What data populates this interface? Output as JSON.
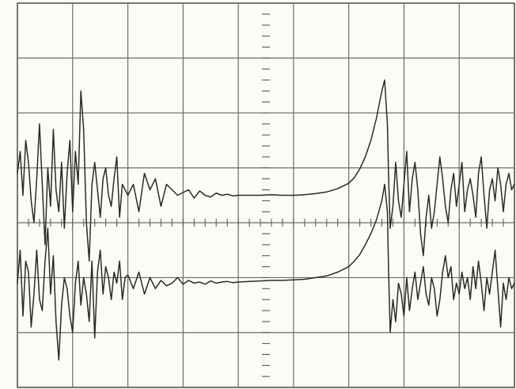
{
  "chart_data": {
    "type": "line",
    "title": "",
    "xlabel": "",
    "ylabel": "",
    "grid": true,
    "xlim": [
      0,
      9
    ],
    "ylim": [
      -3.5,
      3.5
    ],
    "x_divisions": 9,
    "y_divisions": 7,
    "colors": {
      "trace": "#2b2b28",
      "grid": "#6c6c66",
      "background": "#fbfbf8"
    },
    "series": [
      {
        "x": [
          0.0,
          0.05,
          0.1,
          0.15,
          0.2,
          0.25,
          0.3,
          0.35,
          0.4,
          0.45,
          0.5,
          0.55,
          0.6,
          0.65,
          0.7,
          0.75,
          0.8,
          0.85,
          0.9,
          0.95,
          1.0,
          1.05,
          1.1,
          1.15,
          1.2,
          1.25,
          1.3,
          1.35,
          1.4,
          1.45,
          1.5,
          1.55,
          1.6,
          1.65,
          1.7,
          1.75,
          1.8,
          1.85,
          1.9,
          1.95,
          2.0,
          2.1,
          2.2,
          2.3,
          2.4,
          2.5,
          2.6,
          2.7,
          2.8,
          2.9,
          3.0,
          3.1,
          3.2,
          3.3,
          3.4,
          3.5,
          3.6,
          3.7,
          3.8,
          3.9,
          4.0,
          4.2,
          4.4,
          4.6,
          4.8,
          5.0,
          5.2,
          5.4,
          5.6,
          5.8,
          6.0,
          6.1,
          6.2,
          6.3,
          6.4,
          6.5,
          6.6,
          6.65,
          6.7,
          6.72,
          6.75,
          6.8,
          6.85,
          6.9,
          6.95,
          7.0,
          7.05,
          7.1,
          7.15,
          7.2,
          7.25,
          7.3,
          7.35,
          7.4,
          7.45,
          7.5,
          7.55,
          7.6,
          7.65,
          7.7,
          7.75,
          7.8,
          7.85,
          7.9,
          7.95,
          8.0,
          8.05,
          8.1,
          8.15,
          8.2,
          8.25,
          8.3,
          8.35,
          8.4,
          8.45,
          8.5,
          8.55,
          8.6,
          8.65,
          8.7,
          8.75,
          8.8,
          8.85,
          8.9,
          8.95,
          9.0
        ],
        "y": [
          0.4,
          0.8,
          0.0,
          1.0,
          0.6,
          -0.1,
          -0.5,
          0.3,
          1.3,
          0.2,
          -0.9,
          0.5,
          -0.2,
          1.2,
          0.1,
          -0.3,
          0.6,
          -0.6,
          0.4,
          1.0,
          -0.3,
          0.8,
          0.2,
          1.9,
          1.2,
          -0.5,
          -1.2,
          0.2,
          0.6,
          0.1,
          -0.4,
          0.3,
          0.5,
          0.0,
          -0.2,
          0.3,
          0.7,
          -0.4,
          0.2,
          0.1,
          0.0,
          0.2,
          -0.3,
          0.4,
          0.1,
          0.3,
          -0.2,
          0.2,
          0.1,
          0.0,
          0.05,
          0.1,
          -0.05,
          0.08,
          0.0,
          -0.03,
          0.04,
          0.0,
          0.02,
          -0.01,
          0.0,
          0.0,
          0.0,
          0.01,
          0.0,
          0.0,
          0.01,
          0.03,
          0.06,
          0.12,
          0.22,
          0.32,
          0.48,
          0.7,
          1.0,
          1.4,
          1.9,
          2.1,
          1.3,
          0.4,
          -0.6,
          -0.2,
          0.6,
          -0.1,
          -0.4,
          0.2,
          0.8,
          -0.3,
          0.3,
          0.6,
          0.1,
          -0.7,
          -1.1,
          -0.4,
          0.0,
          -0.6,
          -0.3,
          0.2,
          0.7,
          0.3,
          -0.2,
          -0.5,
          0.1,
          0.4,
          -0.2,
          0.2,
          0.6,
          -0.3,
          0.1,
          0.3,
          0.0,
          -0.4,
          0.4,
          0.7,
          0.0,
          -0.6,
          0.1,
          0.3,
          -0.1,
          0.5,
          0.2,
          -0.3,
          0.2,
          0.4,
          0.1,
          0.2
        ]
      },
      {
        "x": [
          0.0,
          0.05,
          0.1,
          0.15,
          0.2,
          0.25,
          0.3,
          0.35,
          0.4,
          0.45,
          0.5,
          0.55,
          0.6,
          0.65,
          0.7,
          0.75,
          0.8,
          0.85,
          0.9,
          0.95,
          1.0,
          1.05,
          1.1,
          1.15,
          1.2,
          1.25,
          1.3,
          1.35,
          1.4,
          1.45,
          1.5,
          1.55,
          1.6,
          1.65,
          1.7,
          1.75,
          1.8,
          1.85,
          1.9,
          1.95,
          2.0,
          2.1,
          2.2,
          2.3,
          2.4,
          2.5,
          2.6,
          2.7,
          2.8,
          2.9,
          3.0,
          3.1,
          3.2,
          3.3,
          3.4,
          3.5,
          3.6,
          3.7,
          3.8,
          3.9,
          4.0,
          4.2,
          4.4,
          4.6,
          4.8,
          5.0,
          5.2,
          5.4,
          5.6,
          5.8,
          6.0,
          6.1,
          6.2,
          6.3,
          6.4,
          6.5,
          6.6,
          6.65,
          6.7,
          6.72,
          6.75,
          6.8,
          6.85,
          6.9,
          6.95,
          7.0,
          7.05,
          7.1,
          7.15,
          7.2,
          7.25,
          7.3,
          7.35,
          7.4,
          7.45,
          7.5,
          7.55,
          7.6,
          7.65,
          7.7,
          7.75,
          7.8,
          7.85,
          7.9,
          7.95,
          8.0,
          8.05,
          8.1,
          8.15,
          8.2,
          8.25,
          8.3,
          8.35,
          8.4,
          8.45,
          8.5,
          8.55,
          8.6,
          8.65,
          8.7,
          8.75,
          8.8,
          8.85,
          8.9,
          8.95,
          9.0
        ],
        "y": [
          -1.6,
          -1.0,
          -2.2,
          -1.2,
          -1.4,
          -2.4,
          -1.8,
          -1.0,
          -1.9,
          -2.1,
          -1.2,
          -0.6,
          -1.8,
          -1.1,
          -2.3,
          -3.0,
          -2.0,
          -1.5,
          -1.7,
          -2.2,
          -2.5,
          -1.6,
          -1.2,
          -2.0,
          -1.5,
          -1.8,
          -2.3,
          -1.2,
          -2.6,
          -1.4,
          -1.0,
          -1.8,
          -1.3,
          -1.5,
          -1.9,
          -1.4,
          -1.6,
          -1.2,
          -1.9,
          -1.5,
          -1.45,
          -1.7,
          -1.4,
          -1.8,
          -1.5,
          -1.7,
          -1.55,
          -1.65,
          -1.6,
          -1.5,
          -1.62,
          -1.55,
          -1.6,
          -1.58,
          -1.62,
          -1.56,
          -1.6,
          -1.58,
          -1.57,
          -1.59,
          -1.58,
          -1.57,
          -1.56,
          -1.55,
          -1.55,
          -1.54,
          -1.53,
          -1.5,
          -1.47,
          -1.4,
          -1.3,
          -1.2,
          -1.08,
          -0.9,
          -0.7,
          -0.45,
          -0.1,
          0.2,
          -0.3,
          -1.3,
          -2.5,
          -1.9,
          -2.3,
          -1.6,
          -1.8,
          -2.2,
          -1.5,
          -2.1,
          -1.7,
          -1.4,
          -1.9,
          -1.6,
          -1.3,
          -1.8,
          -2.0,
          -1.5,
          -1.7,
          -2.2,
          -1.9,
          -1.4,
          -1.1,
          -1.5,
          -1.3,
          -1.9,
          -1.6,
          -1.8,
          -1.4,
          -1.7,
          -1.5,
          -1.9,
          -1.3,
          -1.7,
          -1.2,
          -1.6,
          -2.1,
          -1.5,
          -1.8,
          -1.4,
          -1.0,
          -1.7,
          -2.4,
          -1.6,
          -1.9,
          -1.5,
          -1.7,
          -1.6
        ]
      }
    ]
  }
}
